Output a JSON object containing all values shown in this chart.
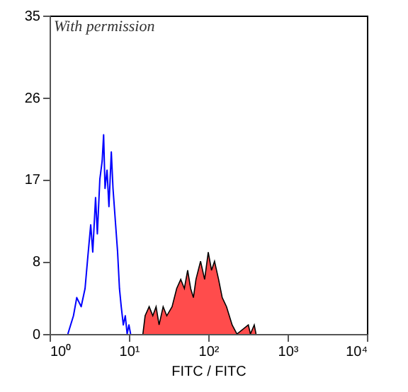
{
  "chart_data": {
    "type": "line",
    "xlabel": "FITC / FITC",
    "annotations": [
      "With permission"
    ],
    "log": "x",
    "grid": false,
    "xlim": [
      1,
      10000
    ],
    "xticks": [
      {
        "value": 1,
        "label": "10⁰"
      },
      {
        "value": 10,
        "label": "10¹"
      },
      {
        "value": 100,
        "label": "10²"
      },
      {
        "value": 1000,
        "label": "10³"
      },
      {
        "value": 10000,
        "label": "10⁴"
      }
    ],
    "ylim": [
      0,
      35
    ],
    "yticks": [
      0,
      8,
      17,
      26,
      35
    ],
    "series": [
      {
        "color": "#0000ff",
        "x": [
          1.7,
          2.0,
          2.2,
          2.5,
          2.8,
          3.0,
          3.3,
          3.5,
          3.8,
          4.0,
          4.3,
          4.6,
          4.8,
          5.0,
          5.3,
          5.6,
          6.0,
          6.3,
          6.8,
          7.2,
          7.6,
          8.0,
          8.5,
          9.0,
          9.5,
          10,
          10.5
        ],
        "values": [
          0,
          2,
          4,
          3,
          5,
          8,
          12,
          9,
          15,
          11,
          17,
          19,
          21.9,
          16,
          18,
          14,
          20,
          16,
          12,
          9,
          5,
          3,
          1,
          2,
          0,
          1,
          0
        ]
      },
      {
        "type": "area",
        "color": "#ff0000",
        "x": [
          15,
          16,
          18,
          20,
          22,
          24,
          27,
          30,
          35,
          40,
          45,
          50,
          55,
          60,
          65,
          70,
          80,
          90,
          100,
          110,
          120,
          135,
          150,
          170,
          200,
          230,
          320,
          340,
          380,
          400
        ],
        "values": [
          0,
          2,
          3,
          2,
          3,
          1,
          3,
          2,
          3,
          5,
          6,
          5,
          7,
          5,
          4,
          6,
          8,
          6,
          9,
          7,
          8,
          6,
          4,
          3,
          1,
          0,
          1,
          0,
          1,
          0
        ]
      }
    ]
  }
}
